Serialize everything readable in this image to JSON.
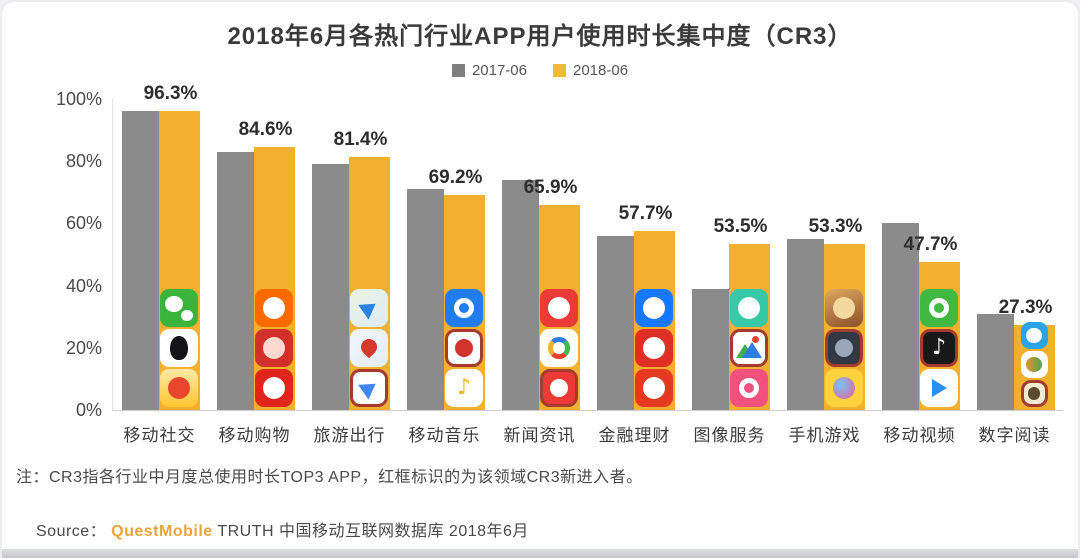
{
  "title": "2018年6月各热门行业APP用户使用时长集中度（CR3）",
  "legend": [
    {
      "label": "2017-06",
      "color": "#7f7f7f"
    },
    {
      "label": "2018-06",
      "color": "#edbc33"
    }
  ],
  "colors": {
    "bar_2017": "#8b8b8b",
    "bar_2018": "#f2b02e",
    "new_entrant_frame": "#a33b2e",
    "background": "#ffffff",
    "source_brand": "#e9a53c"
  },
  "y_axis": {
    "ticks": [
      "100%",
      "80%",
      "60%",
      "40%",
      "20%",
      "0%"
    ],
    "max": 100,
    "min": 0
  },
  "chart_data": {
    "type": "bar",
    "title": "2018年6月各热门行业APP用户使用时长集中度（CR3）",
    "categories": [
      "移动社交",
      "移动购物",
      "旅游出行",
      "移动音乐",
      "新闻资讯",
      "金融理财",
      "图像服务",
      "手机游戏",
      "移动视频",
      "数字阅读"
    ],
    "series": [
      {
        "name": "2017-06",
        "values": [
          96,
          83,
          79,
          71,
          74,
          56,
          39,
          55,
          60,
          31
        ]
      },
      {
        "name": "2018-06",
        "values": [
          96.3,
          84.6,
          81.4,
          69.2,
          65.9,
          57.7,
          53.5,
          53.3,
          47.7,
          27.3
        ],
        "data_labels": [
          "96.3%",
          "84.6%",
          "81.4%",
          "69.2%",
          "65.9%",
          "57.7%",
          "53.5%",
          "53.3%",
          "47.7%",
          "27.3%"
        ]
      }
    ],
    "ylim": [
      0,
      100
    ],
    "grid": false,
    "legend_position": "top"
  },
  "icon_sizes": [
    38,
    38,
    38,
    38,
    38,
    38,
    38,
    38,
    38,
    27
  ],
  "app_icons": [
    [
      {
        "name": "wechat-icon",
        "bg": "#3bb43b",
        "shape": "bubbles",
        "inner": "#ffffff",
        "framed": false
      },
      {
        "name": "qq-icon",
        "bg": "#ffffff",
        "shape": "penguin",
        "inner": "#14131a",
        "framed": false
      },
      {
        "name": "weibo-icon",
        "bg": "linear-gradient(180deg,#ffe9a8,#ffc62e)",
        "shape": "dot",
        "inner": "#e8462d",
        "framed": false
      }
    ],
    [
      {
        "name": "taobao-icon",
        "bg": "#ff6a00",
        "shape": "dot",
        "inner": "#ffffff",
        "framed": false
      },
      {
        "name": "pinduoduo-icon",
        "bg": "#d2302a",
        "shape": "dot",
        "inner": "#ffd9d0",
        "framed": false
      },
      {
        "name": "jd-icon",
        "bg": "#e1251b",
        "shape": "dot",
        "inner": "#ffffff",
        "framed": false
      }
    ],
    [
      {
        "name": "amap-icon",
        "bg": "linear-gradient(135deg,#eaf4e2,#dcebf7)",
        "shape": "plane",
        "inner": "#2a82e4",
        "framed": false
      },
      {
        "name": "baidu-map-icon",
        "bg": "linear-gradient(135deg,#f2f6fb,#e4ecf6)",
        "shape": "pin",
        "inner": "#d6382b",
        "framed": false
      },
      {
        "name": "nav-map-icon",
        "bg": "#ffffff",
        "shape": "plane",
        "inner": "#4285f4",
        "framed": true
      }
    ],
    [
      {
        "name": "kugou-music-icon",
        "bg": "#1f7df0",
        "shape": "ring",
        "inner": "#ffffff",
        "framed": false
      },
      {
        "name": "kuwo-music-icon",
        "bg": "#ffffff",
        "shape": "dot",
        "inner": "#d2332c",
        "framed": true
      },
      {
        "name": "qq-music-icon",
        "bg": "#ffffff",
        "shape": "note",
        "inner": "#e8b52a",
        "framed": false
      }
    ],
    [
      {
        "name": "toutiao-icon",
        "bg": "#ea3b36",
        "shape": "dot",
        "inner": "#ffffff",
        "framed": false
      },
      {
        "name": "tencent-news-icon",
        "bg": "#ffffff",
        "shape": "rainbow",
        "inner": "#2f7de1",
        "framed": false
      },
      {
        "name": "toutiao-lite-icon",
        "bg": "#ea3b36",
        "shape": "dot",
        "inner": "#ffffff",
        "framed": true
      }
    ],
    [
      {
        "name": "alipay-icon",
        "bg": "#1677ff",
        "shape": "dot",
        "inner": "#ffffff",
        "framed": false
      },
      {
        "name": "finance-app-2-icon",
        "bg": "#e02f24",
        "shape": "dot",
        "inner": "#ffffff",
        "framed": false
      },
      {
        "name": "finance-app-3-icon",
        "bg": "#e6391f",
        "shape": "dot",
        "inner": "#ffffff",
        "framed": false
      }
    ],
    [
      {
        "name": "panda-camera-icon",
        "bg": "#35c9a8",
        "shape": "dot",
        "inner": "#ffffff",
        "framed": false
      },
      {
        "name": "photo-gallery-icon",
        "bg": "#ffffff",
        "shape": "mountains",
        "inner": "#3dae52",
        "framed": true
      },
      {
        "name": "meitu-icon",
        "bg": "#f0517e",
        "shape": "ring",
        "inner": "#ffffff",
        "framed": false
      }
    ],
    [
      {
        "name": "kings-glory-icon",
        "bg": "linear-gradient(160deg,#e0a95e,#8a4f2a)",
        "shape": "dot",
        "inner": "#f2d9a0",
        "framed": false
      },
      {
        "name": "pubg-mobile-icon",
        "bg": "#323844",
        "shape": "dot",
        "inner": "#9aa7b8",
        "framed": true
      },
      {
        "name": "match3-game-icon",
        "bg": "#ffd23e",
        "shape": "dot",
        "inner": "radial-gradient(circle at 35% 35%,#7ac3f0,#e85a9b)",
        "framed": false
      }
    ],
    [
      {
        "name": "iqiyi-icon",
        "bg": "#41b842",
        "shape": "ring",
        "inner": "#ffffff",
        "framed": false
      },
      {
        "name": "douyin-icon",
        "bg": "#181818",
        "shape": "note",
        "inner": "#ffffff",
        "framed": true
      },
      {
        "name": "tencent-video-icon",
        "bg": "#ffffff",
        "shape": "play",
        "inner": "#2a8ef0",
        "framed": false
      }
    ],
    [
      {
        "name": "qq-reading-icon",
        "bg": "#2ba3e8",
        "shape": "dot",
        "inner": "#ffffff",
        "framed": false
      },
      {
        "name": "ireader-icon",
        "bg": "#ffffff",
        "shape": "dot",
        "inner": "linear-gradient(90deg,#e8912e,#4aa84e)",
        "framed": false
      },
      {
        "name": "novel-app-icon",
        "bg": "#f4ead0",
        "shape": "dot",
        "inner": "#5b4a32",
        "framed": true
      }
    ]
  ],
  "note": "注：CR3指各行业中月度总使用时长TOP3 APP，红框标识的为该领域CR3新进入者。",
  "source": {
    "prefix": "Source：",
    "brand": "QuestMobile",
    "suffix": " TRUTH 中国移动互联网数据库 2018年6月"
  }
}
